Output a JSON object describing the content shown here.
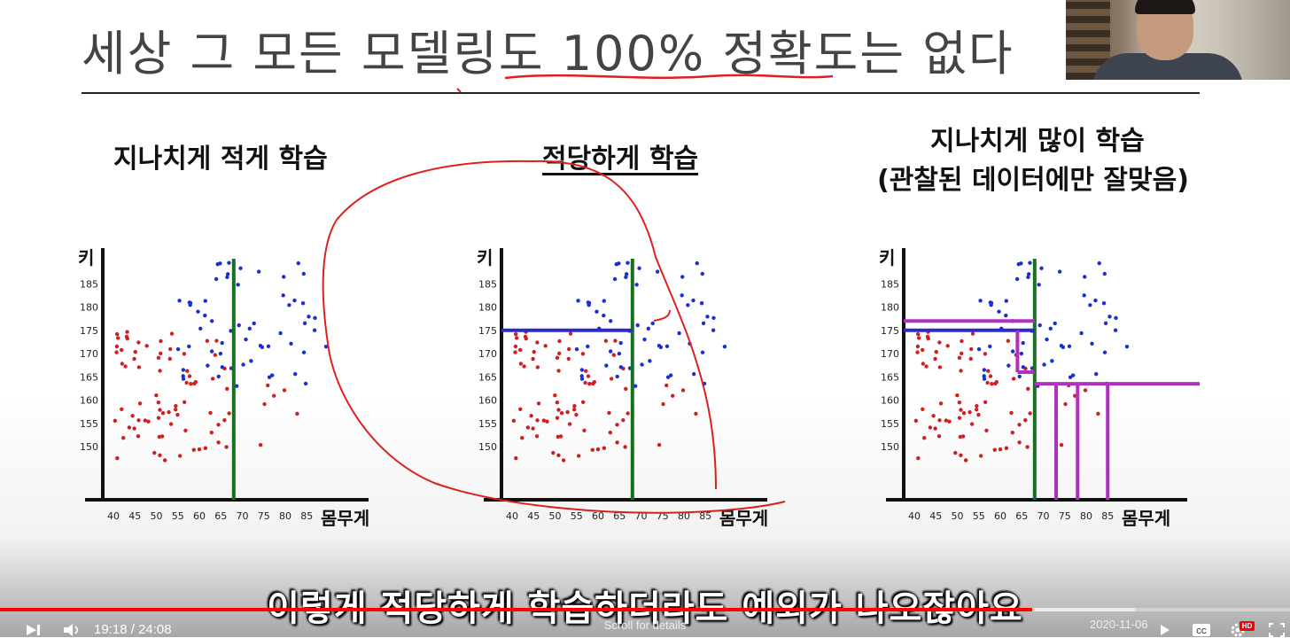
{
  "slide": {
    "title": "세상 그 모든 모델링도 100% 정확도는 없다",
    "panels": [
      {
        "title": "지나치게 적게 학습",
        "subtitle": ""
      },
      {
        "title": "적당하게 학습",
        "subtitle": ""
      },
      {
        "title": "지나치게 많이 학습",
        "subtitle": "(관찰된 데이터에만 잘맞음)"
      }
    ],
    "y_label": "키",
    "x_label": "몸무게",
    "y_ticks": [
      "185",
      "180",
      "175",
      "170",
      "165",
      "160",
      "155",
      "150"
    ],
    "x_ticks": [
      "40",
      "45",
      "50",
      "55",
      "60",
      "65",
      "70",
      "75",
      "80",
      "85"
    ]
  },
  "colors": {
    "red_points": "#d02020",
    "blue_points": "#1a2fd0",
    "boundary_green": "#16721c",
    "boundary_blue": "#2a2ad0",
    "boundary_purple": "#b030c0",
    "annotation_red": "#e02020"
  },
  "video": {
    "caption": "이렇게 적당하게 학습하더라도 예외가 나오잖아요",
    "time_current": "19:18",
    "time_total": "24:08",
    "time_separator": "/",
    "hint": "Scroll for details",
    "date": "2020-11-06",
    "hd_badge": "HD",
    "progress": 0.8
  },
  "icons": {
    "play": "play-icon",
    "next": "next-icon",
    "volume": "volume-icon",
    "settings": "settings-icon",
    "subtitles": "subtitles-icon",
    "fullscreen": "fullscreen-icon"
  }
}
